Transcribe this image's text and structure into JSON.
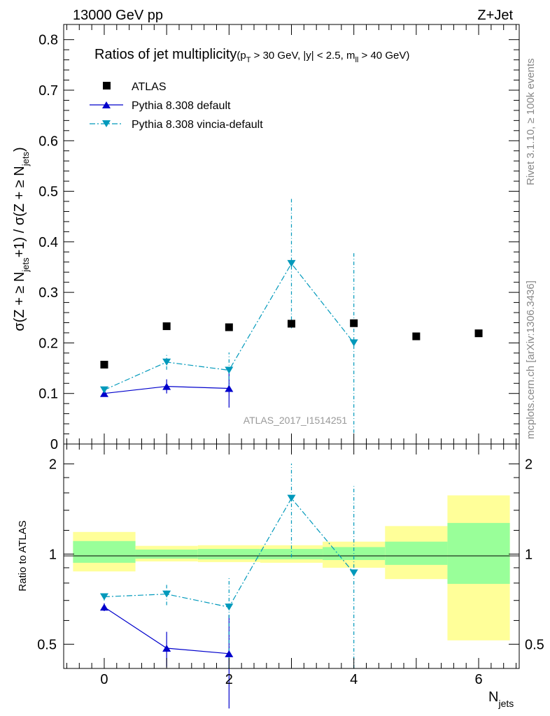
{
  "header": {
    "left": "13000 GeV pp",
    "right": "Z+Jet"
  },
  "side_text": {
    "rivet": "Rivet 3.1.10, ≥ 100k events",
    "mcplots": "mcplots.cern.ch [arXiv:1306.3436]"
  },
  "watermark": "ATLAS_2017_I1514251",
  "colors": {
    "atlas": "#000000",
    "default": "#0000cc",
    "vincia": "#0099bb",
    "band_inner": "#99ff99",
    "band_outer": "#ffff99"
  },
  "chart_data": [
    {
      "type": "scatter",
      "title": "Ratios of jet multiplicity",
      "subtitle": {
        "open": "(p",
        "pt_sub": "T",
        "cuts": " > 30 GeV, |y| < 2.5, m",
        "m_sub": "ll",
        "close": " > 40 GeV)"
      },
      "ylabel": {
        "a": "σ(Z + ≥ N",
        "b": "jets",
        "c": "+1) / σ(Z + ≥ N",
        "d": "jets",
        "e": ")"
      },
      "xlim": [
        -0.65,
        6.65
      ],
      "ylim": [
        0,
        0.83
      ],
      "yticks": [
        0,
        0.1,
        0.2,
        0.3,
        0.4,
        0.5,
        0.6,
        0.7,
        0.8
      ],
      "ytick_labels": [
        "0",
        "0.1",
        "0.2",
        "0.3",
        "0.4",
        "0.5",
        "0.6",
        "0.7",
        "0.8"
      ],
      "legend": [
        "ATLAS",
        "Pythia 8.308 default",
        "Pythia 8.308 vincia-default"
      ],
      "series": [
        {
          "name": "ATLAS",
          "style": "marker",
          "x": [
            0,
            1,
            2,
            3,
            4,
            5,
            6
          ],
          "y": [
            0.157,
            0.233,
            0.231,
            0.238,
            0.239,
            0.213,
            0.219
          ]
        },
        {
          "name": "Pythia 8.308 default",
          "style": "solid",
          "x": [
            0,
            1,
            2
          ],
          "y": [
            0.1,
            0.114,
            0.11
          ],
          "err": [
            0.004,
            0.014,
            0.038
          ]
        },
        {
          "name": "Pythia 8.308 vincia-default",
          "style": "dashdot",
          "x": [
            0,
            1,
            2,
            3,
            4
          ],
          "y": [
            0.107,
            0.162,
            0.146,
            0.357,
            0.2
          ],
          "err": [
            0.005,
            0.015,
            0.035,
            0.128,
            0.178
          ]
        }
      ]
    },
    {
      "type": "scatter",
      "ylabel": "Ratio to ATLAS",
      "xlabel": {
        "main": "N",
        "sub": "jets"
      },
      "xlim": [
        -0.65,
        6.65
      ],
      "ylim": [
        0.415,
        2.33
      ],
      "log_y": true,
      "xticks": [
        0,
        2,
        4,
        6
      ],
      "xtick_labels": [
        "0",
        "2",
        "4",
        "6"
      ],
      "yticks": [
        0.5,
        1,
        2
      ],
      "ytick_labels": [
        "0.5",
        "1",
        "2"
      ],
      "bands": [
        {
          "x": [
            -0.5,
            0.5
          ],
          "inner": [
            0.935,
            1.105
          ],
          "outer": [
            0.875,
            1.185
          ]
        },
        {
          "x": [
            0.5,
            1.5
          ],
          "inner": [
            0.965,
            1.035
          ],
          "outer": [
            0.945,
            1.065
          ]
        },
        {
          "x": [
            1.5,
            2.5
          ],
          "inner": [
            0.96,
            1.04
          ],
          "outer": [
            0.94,
            1.07
          ]
        },
        {
          "x": [
            2.5,
            3.5
          ],
          "inner": [
            0.96,
            1.04
          ],
          "outer": [
            0.935,
            1.07
          ]
        },
        {
          "x": [
            3.5,
            4.5
          ],
          "inner": [
            0.955,
            1.055
          ],
          "outer": [
            0.9,
            1.1
          ]
        },
        {
          "x": [
            4.5,
            5.5
          ],
          "inner": [
            0.92,
            1.1
          ],
          "outer": [
            0.825,
            1.24
          ]
        },
        {
          "x": [
            5.5,
            6.5
          ],
          "inner": [
            0.795,
            1.27
          ],
          "outer": [
            0.515,
            1.57
          ]
        }
      ],
      "series": [
        {
          "name": "Pythia 8.308 default",
          "style": "solid",
          "x": [
            0,
            1,
            2
          ],
          "y": [
            0.665,
            0.485,
            0.465
          ],
          "err_low": [
            0.02,
            0.065,
            0.16
          ],
          "err_high": [
            0.02,
            0.065,
            0.16
          ]
        },
        {
          "name": "Pythia 8.308 vincia-default",
          "style": "dashdot",
          "x": [
            0,
            1,
            2,
            3,
            4
          ],
          "y": [
            0.72,
            0.735,
            0.665,
            1.535,
            0.865
          ],
          "err_low": [
            0.02,
            0.06,
            0.25,
            0.56,
            0.5
          ],
          "err_high": [
            0.02,
            0.06,
            0.17,
            0.47,
            0.82
          ]
        }
      ]
    }
  ]
}
